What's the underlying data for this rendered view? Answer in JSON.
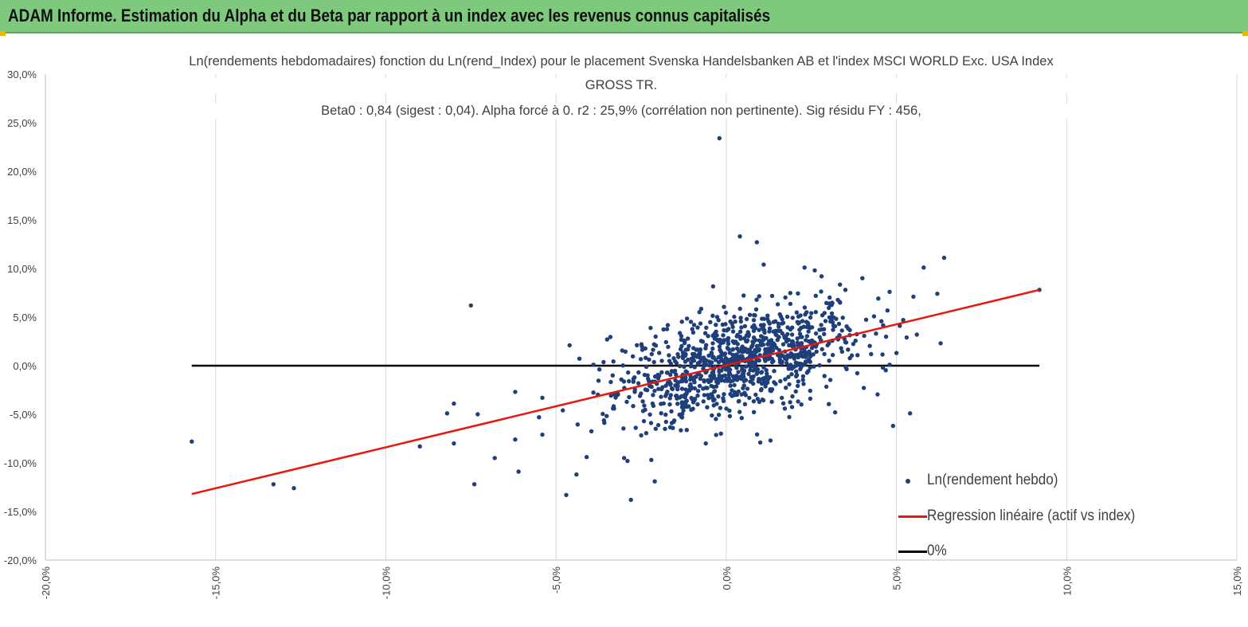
{
  "report_title": "ADAM Informe. Estimation du Alpha et du Beta par rapport à un index avec les revenus connus capitalisés",
  "colors": {
    "banner": "#7fc97f",
    "points": "#1f3f7a",
    "regression": "#e8160c",
    "zero_line": "#000000",
    "grid": "#d9d9d9"
  },
  "chart_data": {
    "type": "scatter",
    "title_lines": [
      "Ln(rendements hebdomadaires) fonction du Ln(rend_Index)  pour le placement Svenska Handelsbanken AB et l'index MSCI WORLD Exc. USA Index",
      "GROSS TR.",
      "Beta0 : 0,84  (sigest : 0,04).  Alpha forcé à 0. r2 : 25,9% (corrélation non pertinente). Sig résidu FY : 456,"
    ],
    "xlim": [
      -0.2,
      0.15
    ],
    "ylim": [
      -0.2,
      0.3
    ],
    "x_ticks": [
      -0.2,
      -0.15,
      -0.1,
      -0.05,
      0.0,
      0.05,
      0.1,
      0.15
    ],
    "x_tick_labels": [
      "-20,0%",
      "-15,0%",
      "-10,0%",
      "-5,0%",
      "0,0%",
      "5,0%",
      "10,0%",
      "15,0%"
    ],
    "y_ticks": [
      -0.2,
      -0.15,
      -0.1,
      -0.05,
      0.0,
      0.05,
      0.1,
      0.15,
      0.2,
      0.25,
      0.3
    ],
    "y_tick_labels": [
      "-20,0%",
      "-15,0%",
      "-10,0%",
      "-5,0%",
      "0,0%",
      "5,0%",
      "10,0%",
      "15,0%",
      "20,0%",
      "25,0%",
      "30,0%"
    ],
    "grid": "vertical",
    "legend_position": "bottom-right",
    "series": [
      {
        "name": "Ln(rendement hebdo)",
        "kind": "scatter",
        "cloud": {
          "approx_count": 1000,
          "center": [
            0.004,
            0.003
          ],
          "spread": [
            0.018,
            0.026
          ],
          "slope": 0.84,
          "x_range": [
            -0.045,
            0.05
          ]
        },
        "points": [
          [
            -0.157,
            -0.078
          ],
          [
            -0.133,
            -0.122
          ],
          [
            -0.127,
            -0.126
          ],
          [
            -0.09,
            -0.083
          ],
          [
            -0.082,
            -0.049
          ],
          [
            -0.08,
            -0.039
          ],
          [
            -0.08,
            -0.08
          ],
          [
            -0.075,
            0.062
          ],
          [
            -0.074,
            -0.122
          ],
          [
            -0.073,
            -0.05
          ],
          [
            -0.068,
            -0.095
          ],
          [
            -0.062,
            -0.027
          ],
          [
            -0.062,
            -0.076
          ],
          [
            -0.061,
            -0.109
          ],
          [
            -0.055,
            -0.053
          ],
          [
            -0.054,
            -0.033
          ],
          [
            -0.054,
            -0.071
          ],
          [
            -0.048,
            -0.046
          ],
          [
            -0.047,
            -0.133
          ],
          [
            -0.046,
            0.021
          ],
          [
            -0.044,
            -0.112
          ],
          [
            -0.041,
            -0.094
          ],
          [
            -0.039,
            0.001
          ],
          [
            -0.035,
            0.027
          ],
          [
            -0.03,
            -0.095
          ],
          [
            -0.029,
            -0.098
          ],
          [
            -0.028,
            -0.138
          ],
          [
            -0.022,
            -0.097
          ],
          [
            -0.021,
            -0.119
          ],
          [
            -0.016,
            -0.059
          ],
          [
            -0.002,
            0.234
          ],
          [
            -0.006,
            -0.08
          ],
          [
            0.004,
            0.133
          ],
          [
            0.009,
            0.127
          ],
          [
            0.01,
            -0.079
          ],
          [
            0.011,
            0.104
          ],
          [
            0.013,
            -0.077
          ],
          [
            0.023,
            0.101
          ],
          [
            0.026,
            0.098
          ],
          [
            0.028,
            0.092
          ],
          [
            0.031,
            0.05
          ],
          [
            0.032,
            -0.048
          ],
          [
            0.035,
            0.078
          ],
          [
            0.04,
            0.09
          ],
          [
            0.044,
            0.033
          ],
          [
            0.046,
            -0.002
          ],
          [
            0.048,
            0.076
          ],
          [
            0.048,
            0.001
          ],
          [
            0.049,
            -0.062
          ],
          [
            0.05,
            0.013
          ],
          [
            0.051,
            0.041
          ],
          [
            0.052,
            0.047
          ],
          [
            0.053,
            0.029
          ],
          [
            0.054,
            -0.049
          ],
          [
            0.055,
            0.071
          ],
          [
            0.056,
            0.032
          ],
          [
            0.058,
            0.101
          ],
          [
            0.062,
            0.074
          ],
          [
            0.063,
            0.023
          ],
          [
            0.064,
            0.111
          ],
          [
            0.092,
            0.078
          ]
        ]
      },
      {
        "name": "Regression linéaire (actif vs index)",
        "kind": "line",
        "x": [
          -0.157,
          0.092
        ],
        "y": [
          -0.132,
          0.078
        ]
      },
      {
        "name": "0%",
        "kind": "line",
        "x": [
          -0.157,
          0.092
        ],
        "y": [
          0.0,
          0.0
        ]
      }
    ]
  }
}
